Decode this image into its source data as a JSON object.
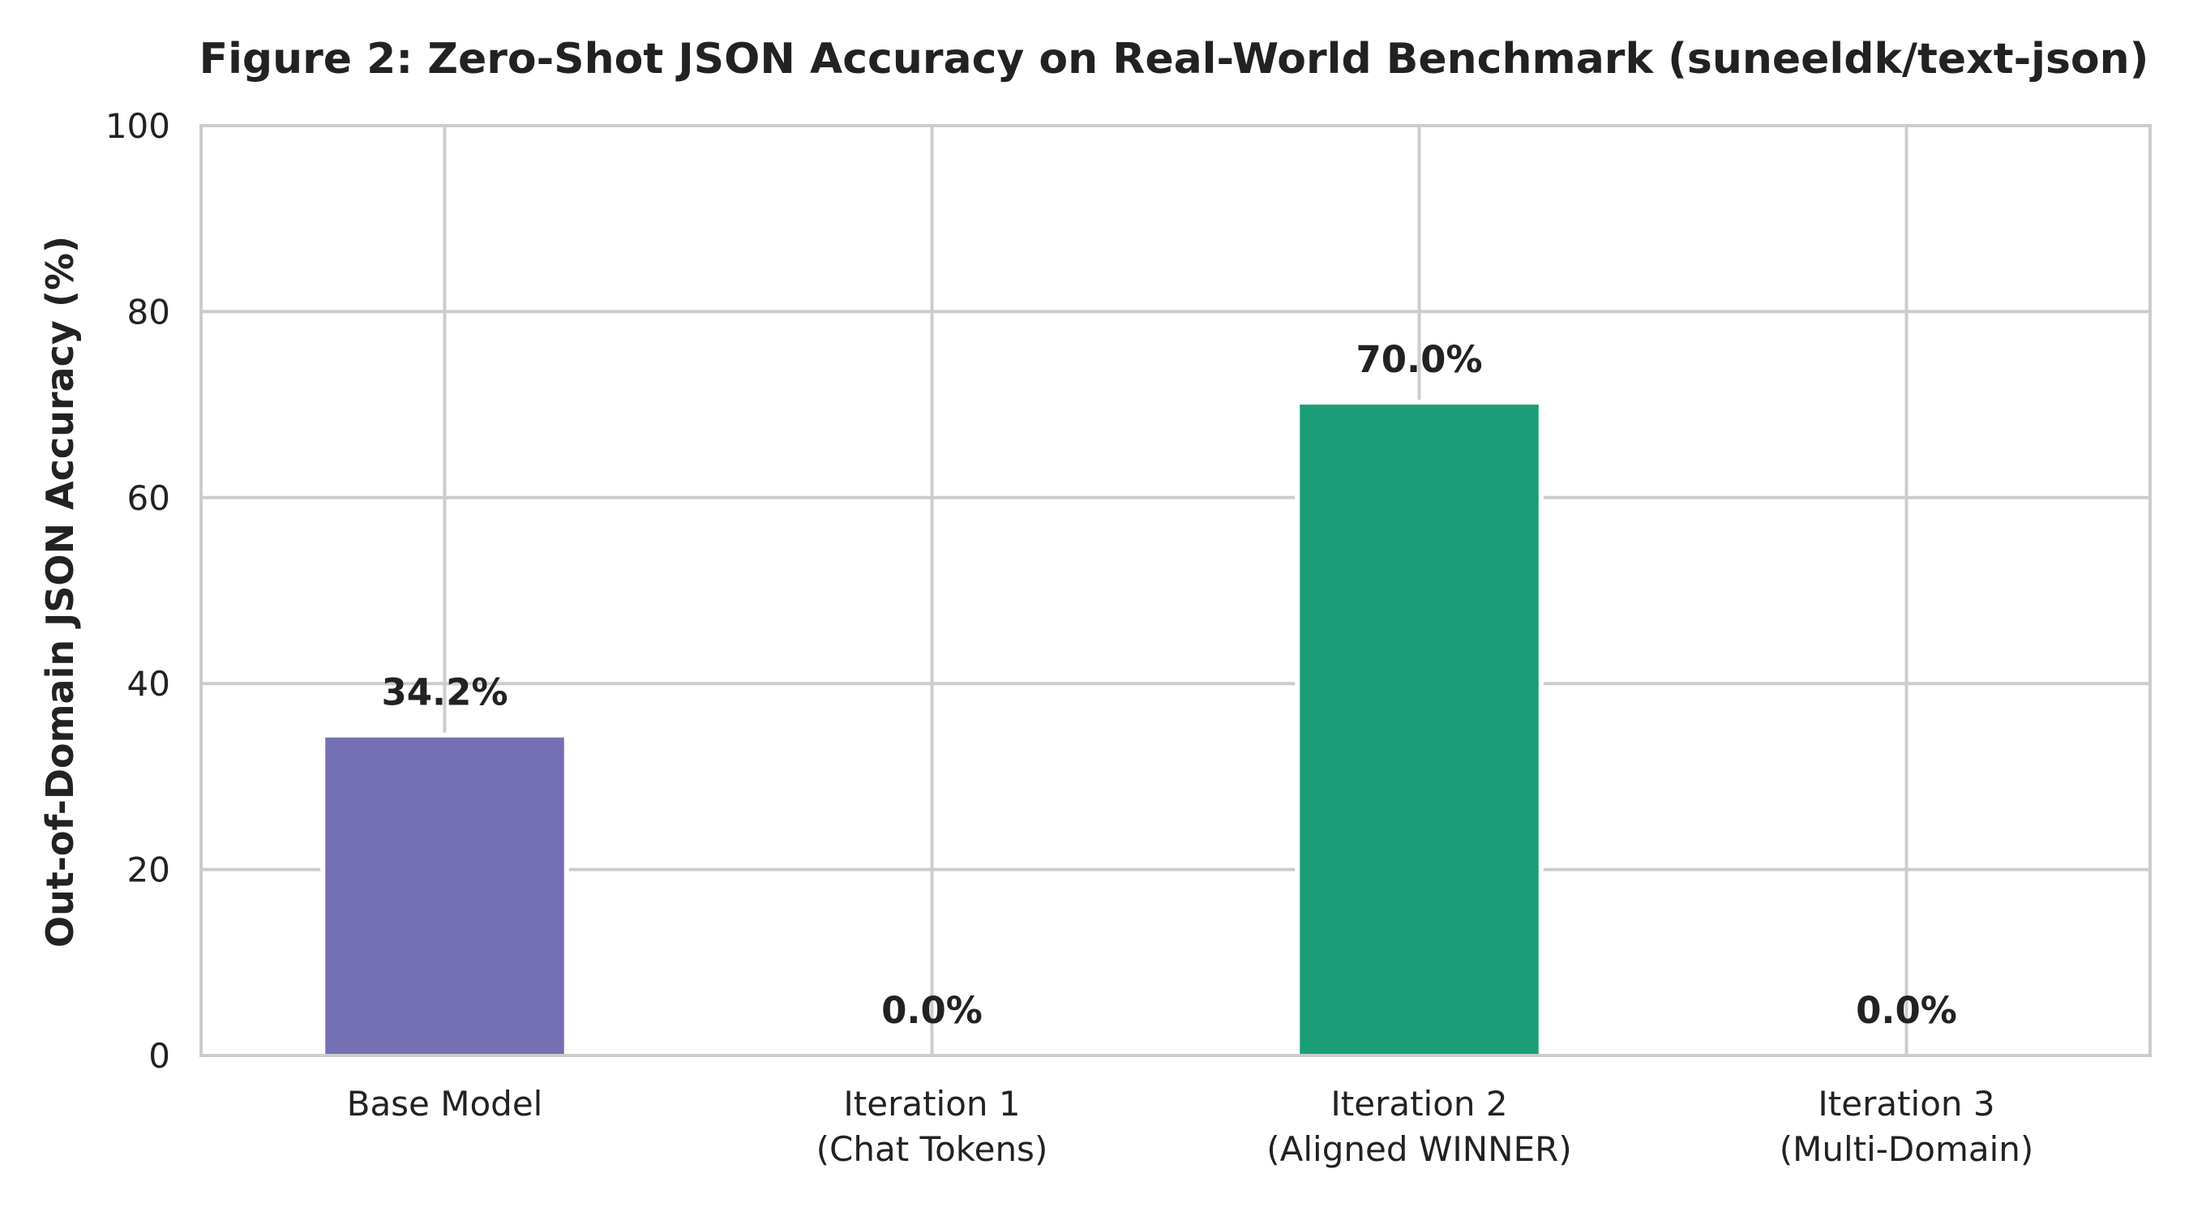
{
  "chart_data": {
    "type": "bar",
    "title": "Figure 2: Zero-Shot JSON Accuracy on Real-World Benchmark (suneeldk/text-json)",
    "xlabel": "",
    "ylabel": "Out-of-Domain JSON Accuracy (%)",
    "ylim": [
      0,
      100
    ],
    "yticks": [
      0,
      20,
      40,
      60,
      80,
      100
    ],
    "grid": true,
    "categories": [
      [
        "Base Model"
      ],
      [
        "Iteration 1",
        "(Chat Tokens)"
      ],
      [
        "Iteration 2",
        "(Aligned WINNER)"
      ],
      [
        "Iteration 3",
        "(Multi-Domain)"
      ]
    ],
    "values": [
      34.2,
      0.0,
      70.0,
      0.0
    ],
    "value_labels": [
      "34.2%",
      "0.0%",
      "70.0%",
      "0.0%"
    ],
    "bar_colors": [
      "#7570b3",
      "#d95f02",
      "#1b9e77",
      "#e7298a"
    ]
  }
}
